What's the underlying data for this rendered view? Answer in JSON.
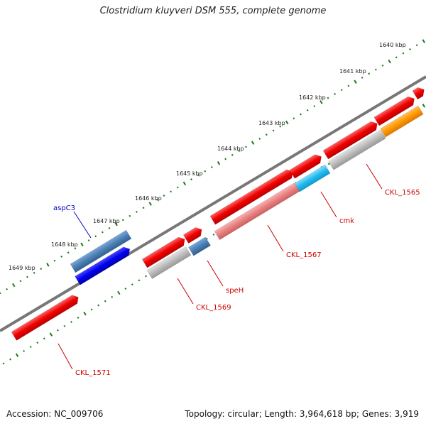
{
  "title": "Clostridium kluyveri DSM 555, complete genome",
  "accession": "Accession: NC_009706",
  "topology": "Topology: circular; Length: 3,964,618 bp; Genes: 3,919",
  "ticks": [
    "1640 kbp",
    "1641 kbp",
    "1642 kbp",
    "1643 kbp",
    "1644 kbp",
    "1645 kbp",
    "1646 kbp",
    "1647 kbp",
    "1648 kbp",
    "1649 kbp"
  ],
  "genes": [
    {
      "name": "aspC3",
      "color": "#0000cc"
    },
    {
      "name": "CKL_1571",
      "color": "#cc0000"
    },
    {
      "name": "CKL_1569",
      "color": "#cc0000"
    },
    {
      "name": "speH",
      "color": "#cc0000"
    },
    {
      "name": "CKL_1567",
      "color": "#cc0000"
    },
    {
      "name": "cmk",
      "color": "#cc0000"
    },
    {
      "name": "CKL_1565",
      "color": "#cc0000"
    }
  ],
  "colors": {
    "red": "#ee0000",
    "pink": "#e88080",
    "gray": "#b8b8b8",
    "steel": "#4a7fb5",
    "blue": "#0000ee",
    "cyan": "#22bbee",
    "orange": "#ff9900",
    "backbone": "#777777",
    "tick": "#1a7a1a"
  }
}
